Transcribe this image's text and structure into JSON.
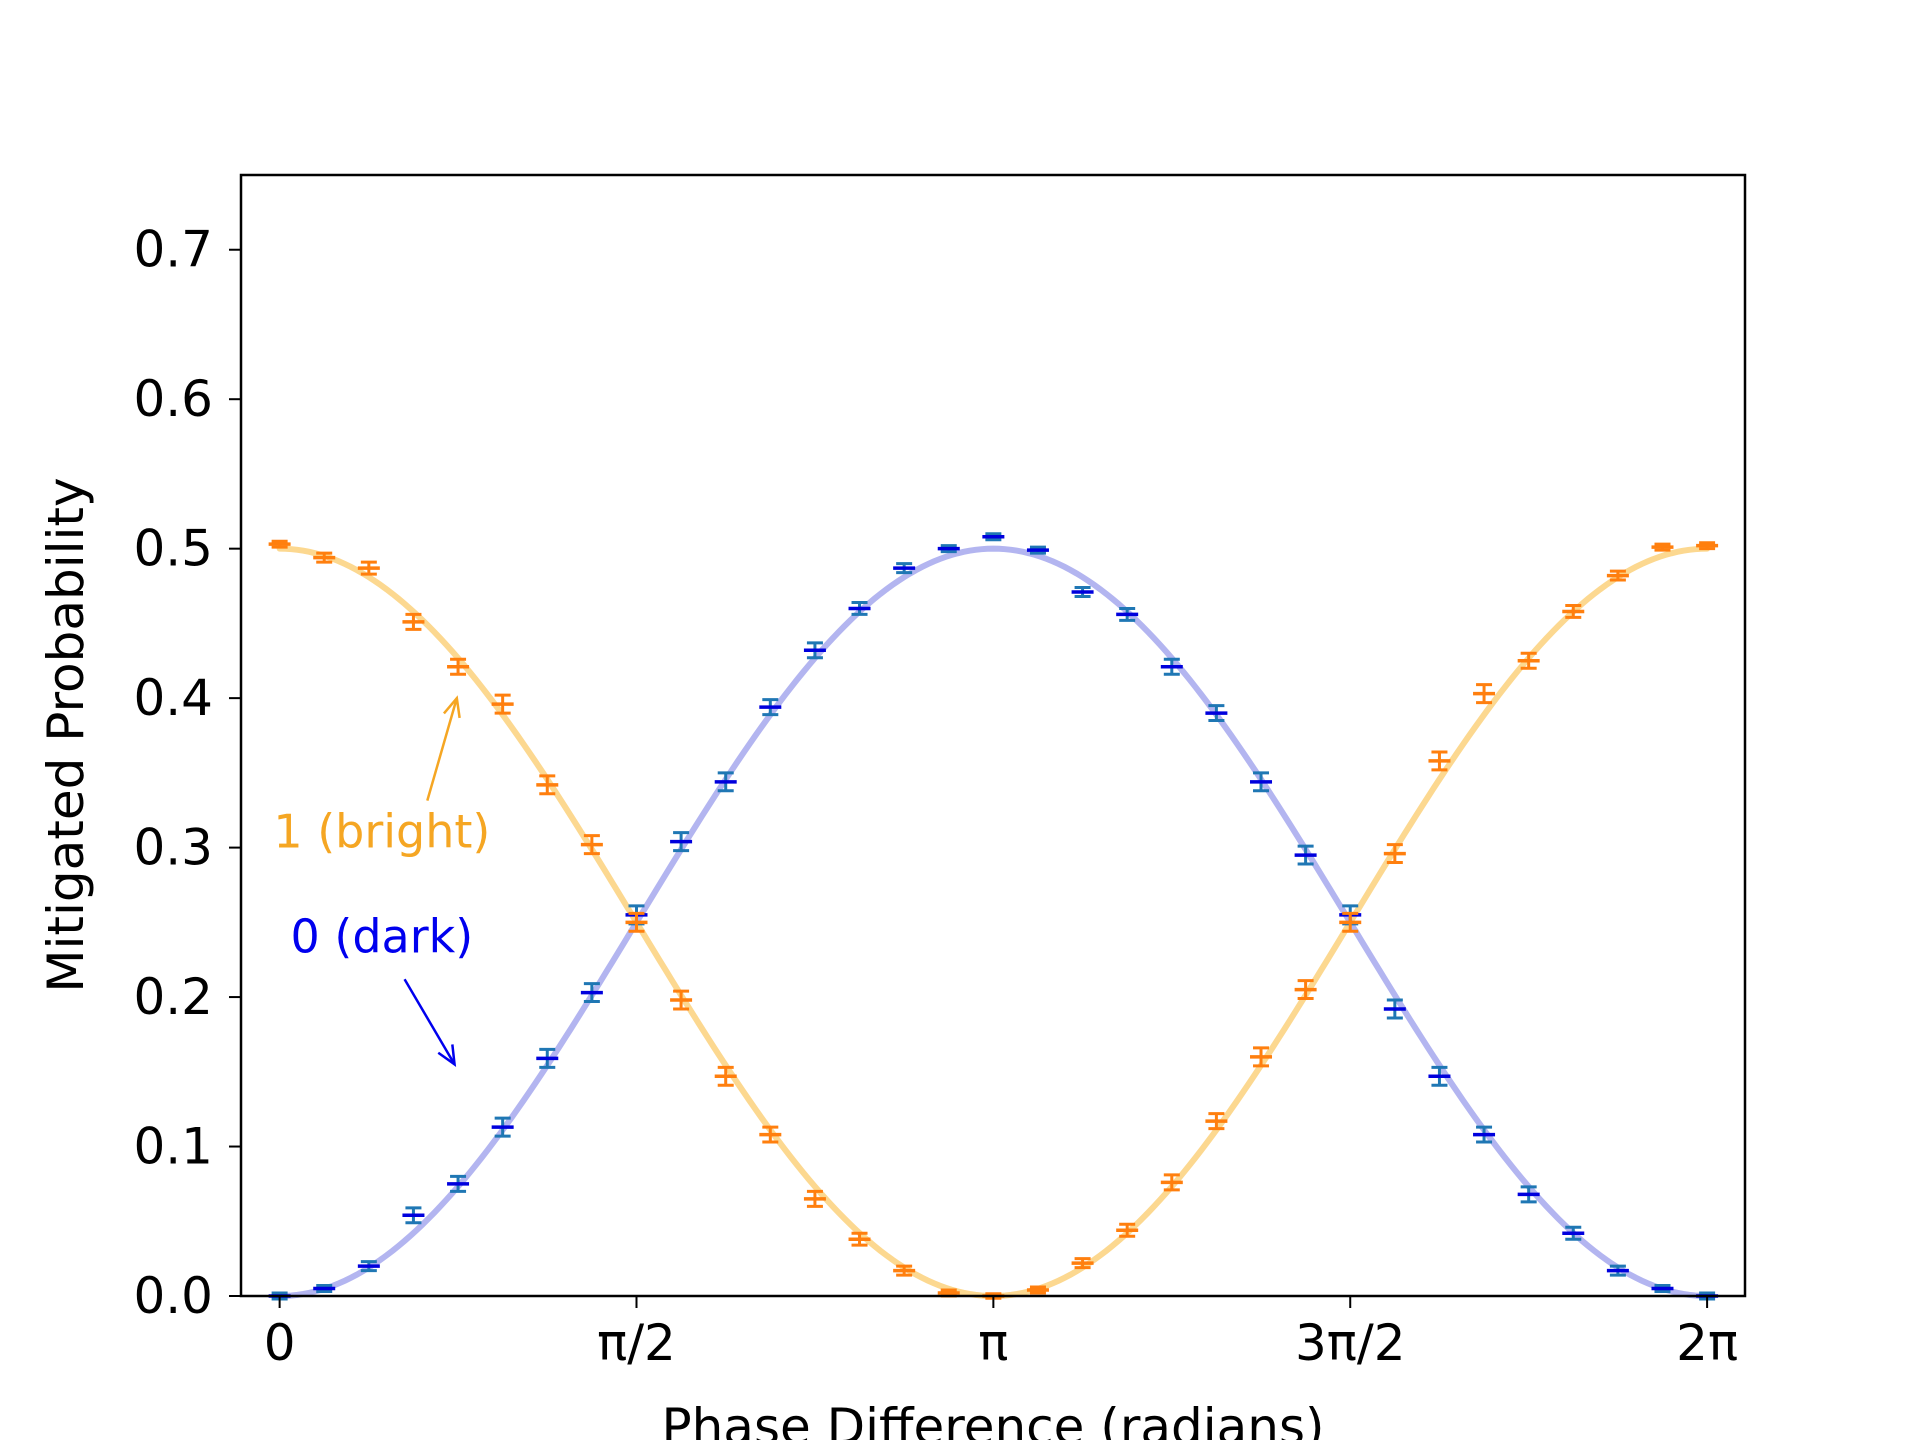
{
  "chart_data": {
    "type": "scatter",
    "title": "",
    "xlabel": "Phase Difference (radians)",
    "ylabel": "Mitigated Probability",
    "xlim": [
      -0.17,
      6.45
    ],
    "ylim": [
      0.0,
      0.75
    ],
    "x_unit": "radians",
    "xticks": [
      {
        "value": 0,
        "label": "0"
      },
      {
        "value": 1.5708,
        "label": "π/2"
      },
      {
        "value": 3.1416,
        "label": "π"
      },
      {
        "value": 4.7124,
        "label": "3π/2"
      },
      {
        "value": 6.2832,
        "label": "2π"
      }
    ],
    "yticks": [
      {
        "value": 0.0,
        "label": "0.0"
      },
      {
        "value": 0.1,
        "label": "0.1"
      },
      {
        "value": 0.2,
        "label": "0.2"
      },
      {
        "value": 0.3,
        "label": "0.3"
      },
      {
        "value": 0.4,
        "label": "0.4"
      },
      {
        "value": 0.5,
        "label": "0.5"
      },
      {
        "value": 0.6,
        "label": "0.6"
      },
      {
        "value": 0.7,
        "label": "0.7"
      }
    ],
    "grid": false,
    "legend": "none",
    "x": [
      0.0,
      0.1963,
      0.3927,
      0.589,
      0.7854,
      0.9817,
      1.1781,
      1.3744,
      1.5708,
      1.7671,
      1.9635,
      2.1598,
      2.3562,
      2.5525,
      2.7489,
      2.9452,
      3.1416,
      3.3379,
      3.5343,
      3.7306,
      3.927,
      4.1233,
      4.3197,
      4.516,
      4.7124,
      4.9087,
      5.1051,
      5.3014,
      5.4978,
      5.6941,
      5.8905,
      6.0868,
      6.2832
    ],
    "series": [
      {
        "name": "1 (bright)",
        "color": "#ff7f0e",
        "fit_color": "#fcd890",
        "fit_amplitude": 0.5,
        "values": [
          0.503,
          0.494,
          0.487,
          0.451,
          0.421,
          0.396,
          0.342,
          0.302,
          0.25,
          0.198,
          0.147,
          0.108,
          0.065,
          0.038,
          0.017,
          0.002,
          0.0,
          0.004,
          0.022,
          0.044,
          0.076,
          0.117,
          0.16,
          0.205,
          0.25,
          0.296,
          0.358,
          0.403,
          0.425,
          0.458,
          0.482,
          0.501,
          0.502
        ],
        "errors": [
          0.002,
          0.003,
          0.004,
          0.005,
          0.005,
          0.006,
          0.006,
          0.006,
          0.006,
          0.006,
          0.006,
          0.005,
          0.005,
          0.004,
          0.003,
          0.002,
          0.001,
          0.002,
          0.003,
          0.004,
          0.005,
          0.005,
          0.006,
          0.006,
          0.006,
          0.006,
          0.006,
          0.006,
          0.005,
          0.004,
          0.003,
          0.002,
          0.002
        ]
      },
      {
        "name": "0 (dark)",
        "color": "#1f77b4",
        "cap_color": "#0000dd",
        "fit_color": "#b3b5f0",
        "fit_amplitude": 0.5,
        "values": [
          0.0,
          0.005,
          0.02,
          0.054,
          0.075,
          0.113,
          0.159,
          0.203,
          0.255,
          0.304,
          0.344,
          0.394,
          0.432,
          0.46,
          0.487,
          0.5,
          0.508,
          0.499,
          0.471,
          0.456,
          0.421,
          0.39,
          0.344,
          0.295,
          0.255,
          0.192,
          0.147,
          0.108,
          0.068,
          0.042,
          0.017,
          0.005,
          0.0
        ],
        "errors": [
          0.002,
          0.002,
          0.003,
          0.005,
          0.005,
          0.006,
          0.006,
          0.006,
          0.006,
          0.006,
          0.006,
          0.005,
          0.005,
          0.004,
          0.003,
          0.002,
          0.002,
          0.002,
          0.003,
          0.004,
          0.005,
          0.005,
          0.006,
          0.006,
          0.006,
          0.006,
          0.006,
          0.005,
          0.005,
          0.004,
          0.003,
          0.002,
          0.002
        ]
      }
    ],
    "annotations": [
      {
        "text": "1 (bright)",
        "color": "#f5a623",
        "xytext": [
          0.45,
          0.31
        ],
        "xy": [
          0.78,
          0.4
        ]
      },
      {
        "text": "0 (dark)",
        "color": "#0000ee",
        "xytext": [
          0.45,
          0.24
        ],
        "xy": [
          0.77,
          0.155
        ]
      }
    ]
  }
}
